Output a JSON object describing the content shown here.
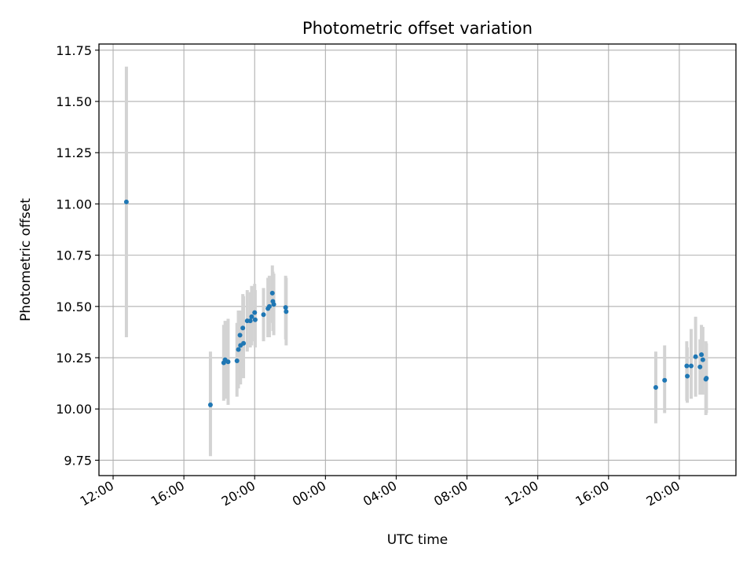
{
  "chart_data": {
    "type": "scatter",
    "title": "Photometric offset variation",
    "xlabel": "UTC time",
    "ylabel": "Photometric offset",
    "x_ticks": [
      "12:00",
      "16:00",
      "20:00",
      "00:00",
      "04:00",
      "08:00",
      "12:00",
      "16:00",
      "20:00"
    ],
    "x_tick_hours": [
      12,
      16,
      20,
      24,
      28,
      32,
      36,
      40,
      44
    ],
    "xlim_hours": [
      11.2,
      47.2
    ],
    "y_ticks": [
      "9.75",
      "10.00",
      "10.25",
      "10.50",
      "10.75",
      "11.00",
      "11.25",
      "11.50",
      "11.75"
    ],
    "ylim": [
      9.675,
      11.78
    ],
    "grid": true,
    "colors": {
      "point": "#1f77b4",
      "errorbar": "#d3d3d3",
      "grid": "#b0b0b0"
    },
    "series": [
      {
        "points": [
          {
            "time": "12:45",
            "h": 12.75,
            "y": 11.01,
            "lo": 10.35,
            "hi": 11.67
          },
          {
            "time": "17:30",
            "h": 17.5,
            "y": 10.02,
            "lo": 9.77,
            "hi": 10.28
          },
          {
            "time": "18:15",
            "h": 18.25,
            "y": 10.225,
            "lo": 10.04,
            "hi": 10.41
          },
          {
            "time": "18:20",
            "h": 18.33,
            "y": 10.24,
            "lo": 10.05,
            "hi": 10.43
          },
          {
            "time": "18:30",
            "h": 18.5,
            "y": 10.23,
            "lo": 10.02,
            "hi": 10.44
          },
          {
            "time": "19:00",
            "h": 19.0,
            "y": 10.235,
            "lo": 10.06,
            "hi": 10.42
          },
          {
            "time": "19:05",
            "h": 19.08,
            "y": 10.29,
            "lo": 10.1,
            "hi": 10.48
          },
          {
            "time": "19:10",
            "h": 19.17,
            "y": 10.36,
            "lo": 10.16,
            "hi": 10.48
          },
          {
            "time": "19:12",
            "h": 19.2,
            "y": 10.31,
            "lo": 10.12,
            "hi": 10.48
          },
          {
            "time": "19:20",
            "h": 19.33,
            "y": 10.395,
            "lo": 10.2,
            "hi": 10.56
          },
          {
            "time": "19:22",
            "h": 19.37,
            "y": 10.32,
            "lo": 10.15,
            "hi": 10.55
          },
          {
            "time": "19:35",
            "h": 19.58,
            "y": 10.43,
            "lo": 10.28,
            "hi": 10.58
          },
          {
            "time": "19:45",
            "h": 19.75,
            "y": 10.43,
            "lo": 10.3,
            "hi": 10.57
          },
          {
            "time": "19:50",
            "h": 19.83,
            "y": 10.45,
            "lo": 10.31,
            "hi": 10.6
          },
          {
            "time": "20:00",
            "h": 20.0,
            "y": 10.47,
            "lo": 10.33,
            "hi": 10.61
          },
          {
            "time": "20:02",
            "h": 20.03,
            "y": 10.435,
            "lo": 10.3,
            "hi": 10.58
          },
          {
            "time": "20:30",
            "h": 20.5,
            "y": 10.46,
            "lo": 10.33,
            "hi": 10.59
          },
          {
            "time": "20:45",
            "h": 20.75,
            "y": 10.49,
            "lo": 10.35,
            "hi": 10.64
          },
          {
            "time": "20:50",
            "h": 20.83,
            "y": 10.5,
            "lo": 10.35,
            "hi": 10.65
          },
          {
            "time": "21:00",
            "h": 21.0,
            "y": 10.565,
            "lo": 10.42,
            "hi": 10.7
          },
          {
            "time": "21:02",
            "h": 21.03,
            "y": 10.525,
            "lo": 10.38,
            "hi": 10.67
          },
          {
            "time": "21:05",
            "h": 21.08,
            "y": 10.51,
            "lo": 10.36,
            "hi": 10.66
          },
          {
            "time": "21:45",
            "h": 21.75,
            "y": 10.495,
            "lo": 10.34,
            "hi": 10.65
          },
          {
            "time": "21:47",
            "h": 21.78,
            "y": 10.475,
            "lo": 10.31,
            "hi": 10.64
          },
          {
            "time": "18:40 (+1d)",
            "h": 42.67,
            "y": 10.105,
            "lo": 9.93,
            "hi": 10.28
          },
          {
            "time": "19:10 (+1d)",
            "h": 43.17,
            "y": 10.14,
            "lo": 9.98,
            "hi": 10.31
          },
          {
            "time": "20:25 (+1d)",
            "h": 44.42,
            "y": 10.21,
            "lo": 10.04,
            "hi": 10.33
          },
          {
            "time": "20:27 (+1d)",
            "h": 44.45,
            "y": 10.16,
            "lo": 10.03,
            "hi": 10.3
          },
          {
            "time": "20:40 (+1d)",
            "h": 44.67,
            "y": 10.21,
            "lo": 10.05,
            "hi": 10.39
          },
          {
            "time": "20:55 (+1d)",
            "h": 44.92,
            "y": 10.255,
            "lo": 10.06,
            "hi": 10.45
          },
          {
            "time": "21:10 (+1d)",
            "h": 45.17,
            "y": 10.205,
            "lo": 10.07,
            "hi": 10.34
          },
          {
            "time": "21:15 (+1d)",
            "h": 45.25,
            "y": 10.265,
            "lo": 10.1,
            "hi": 10.41
          },
          {
            "time": "21:20 (+1d)",
            "h": 45.33,
            "y": 10.24,
            "lo": 10.07,
            "hi": 10.4
          },
          {
            "time": "21:30 (+1d)",
            "h": 45.5,
            "y": 10.145,
            "lo": 9.97,
            "hi": 10.33
          },
          {
            "time": "21:32 (+1d)",
            "h": 45.53,
            "y": 10.15,
            "lo": 9.98,
            "hi": 10.32
          }
        ]
      }
    ]
  }
}
